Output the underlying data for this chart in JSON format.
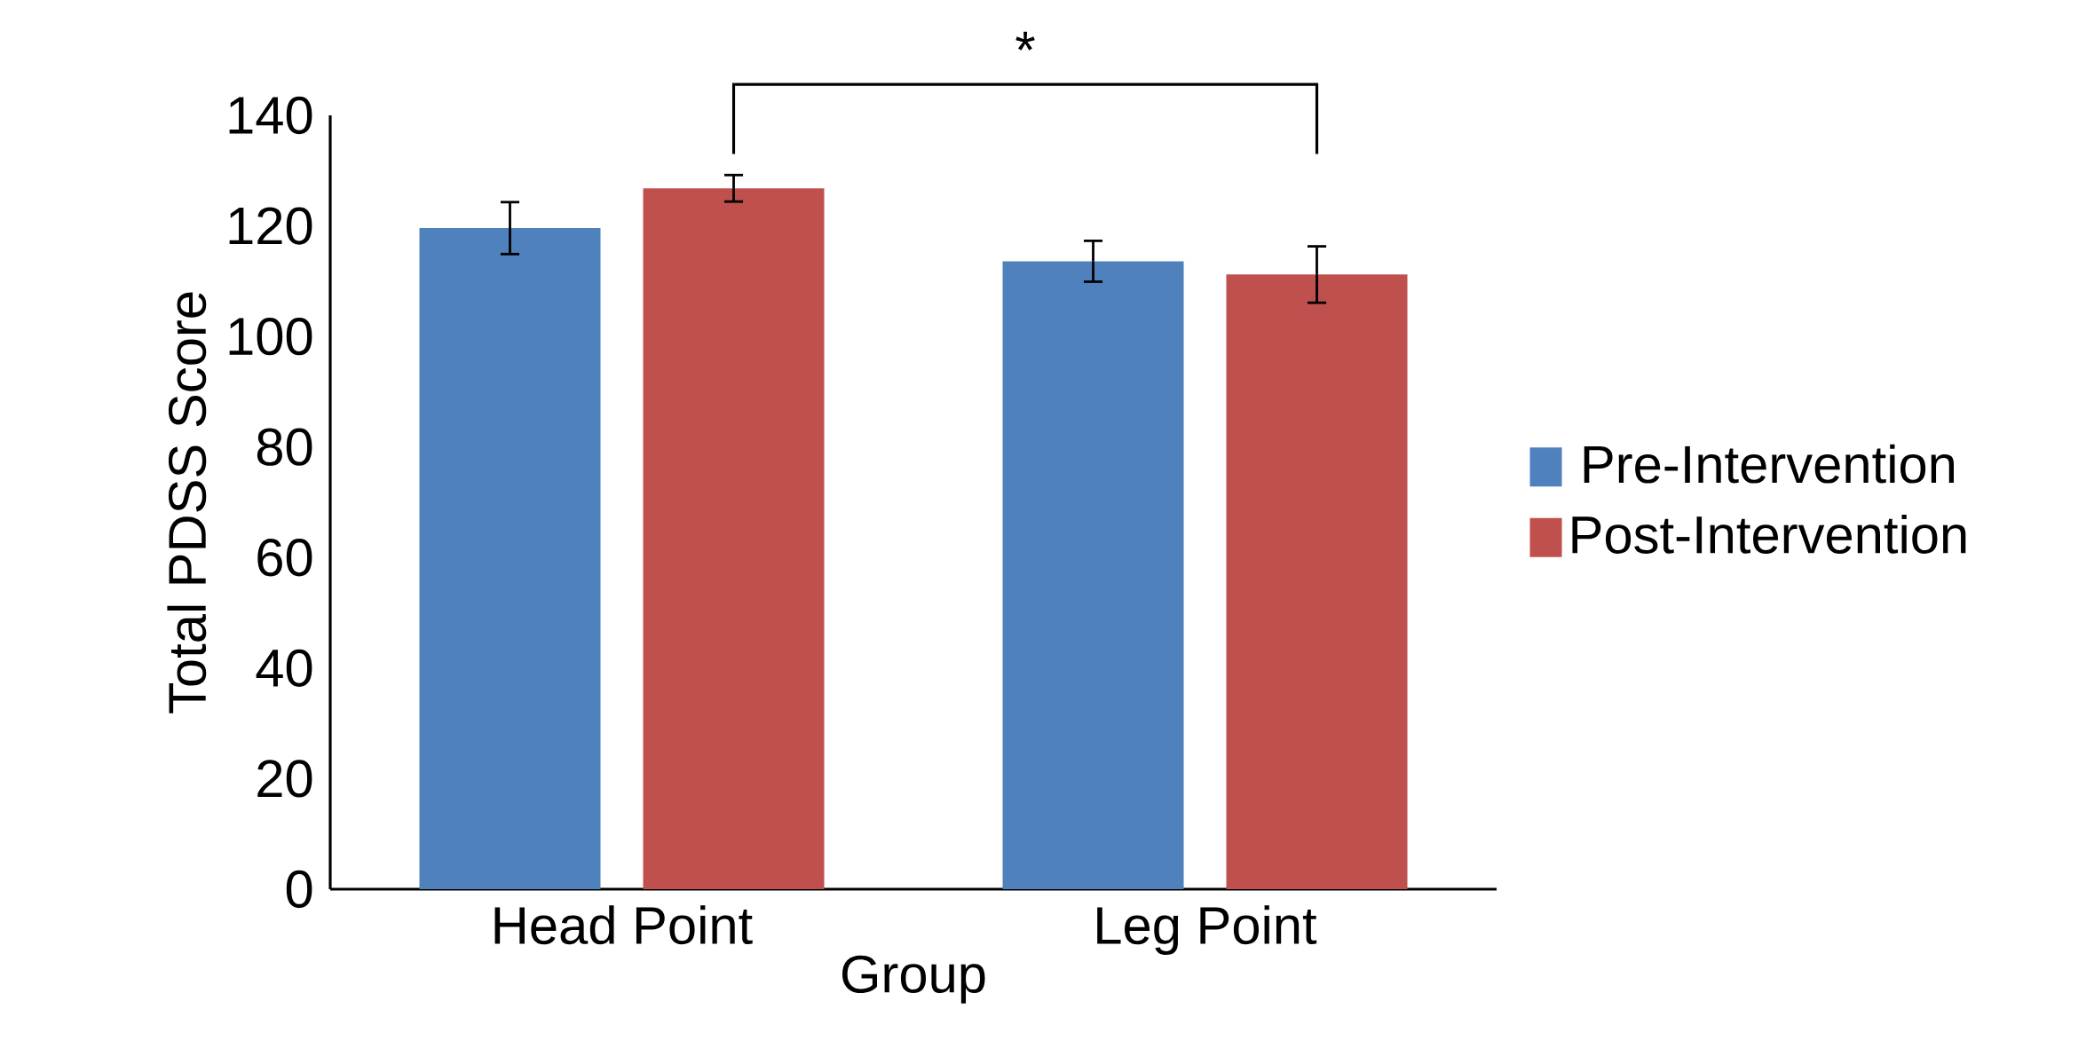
{
  "chart_data": {
    "type": "bar",
    "xlabel": "Group",
    "ylabel": "Total PDSS Score",
    "categories": [
      "Head Point",
      "Leg Point"
    ],
    "series": [
      {
        "name": "Pre-Intervention",
        "color": "#4f81bd",
        "values": [
          119.6,
          113.6
        ],
        "errors": [
          4.7,
          3.7
        ]
      },
      {
        "name": "Post-Intervention",
        "color": "#c0504d",
        "values": [
          126.8,
          111.2
        ],
        "errors": [
          2.4,
          5.1
        ]
      }
    ],
    "ylim": [
      0,
      140
    ],
    "yticks": [
      0,
      20,
      40,
      60,
      80,
      100,
      120,
      140
    ],
    "legend": "right",
    "grid": false,
    "annotations": [
      "*"
    ]
  }
}
